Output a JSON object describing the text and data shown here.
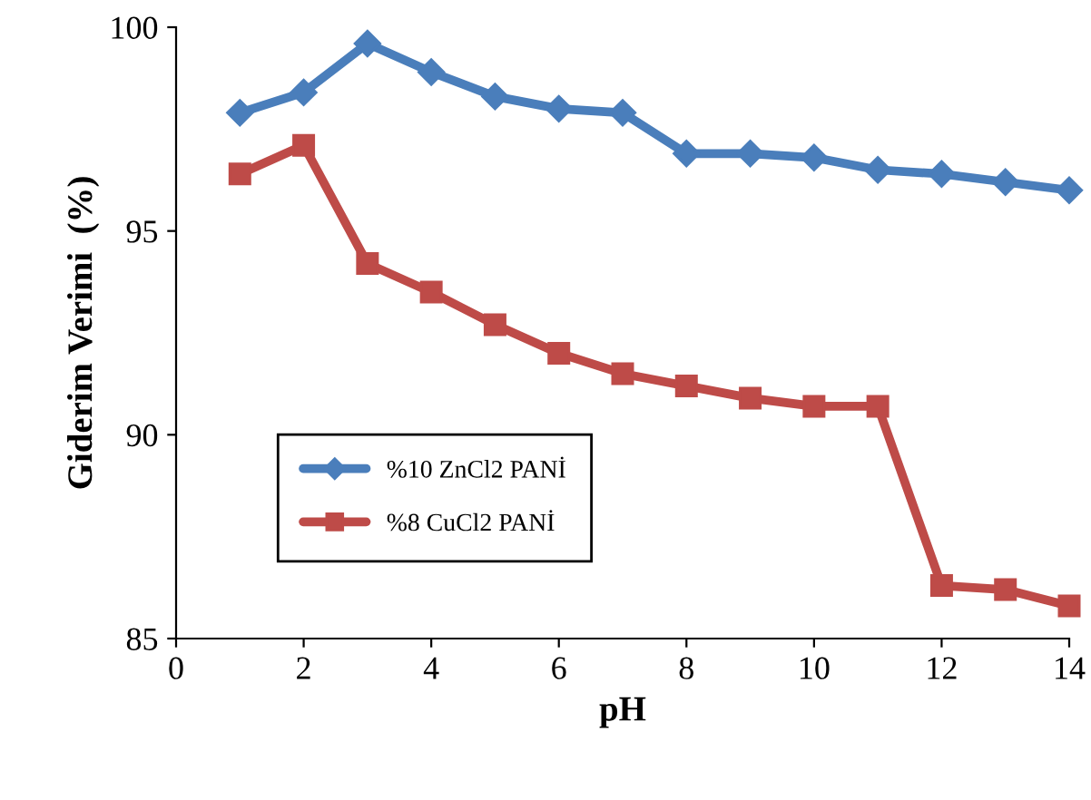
{
  "chart_data": {
    "type": "line",
    "xlabel": "pH",
    "ylabel": "Giderim Verimi  (%)",
    "x": [
      1,
      2,
      3,
      4,
      5,
      6,
      7,
      8,
      9,
      10,
      11,
      12,
      13,
      14
    ],
    "series": [
      {
        "name": "%10 ZnCl2 PANİ",
        "color": "#4a7ebb",
        "marker": "diamond",
        "values": [
          97.9,
          98.4,
          99.6,
          98.9,
          98.3,
          98.0,
          97.9,
          96.9,
          96.9,
          96.8,
          96.5,
          96.4,
          96.2,
          96.0
        ]
      },
      {
        "name": "%8 CuCl2 PANİ",
        "color": "#be4b48",
        "marker": "square",
        "values": [
          96.4,
          97.1,
          94.2,
          93.5,
          92.7,
          92.0,
          91.5,
          91.2,
          90.9,
          90.7,
          90.7,
          86.3,
          86.2,
          85.8
        ]
      }
    ],
    "xlim": [
      0,
      14
    ],
    "ylim": [
      85,
      100
    ],
    "xticks": [
      0,
      2,
      4,
      6,
      8,
      10,
      12,
      14
    ],
    "yticks": [
      85,
      90,
      95,
      100
    ],
    "grid": false,
    "legend": "center left",
    "line_style": "solid"
  }
}
